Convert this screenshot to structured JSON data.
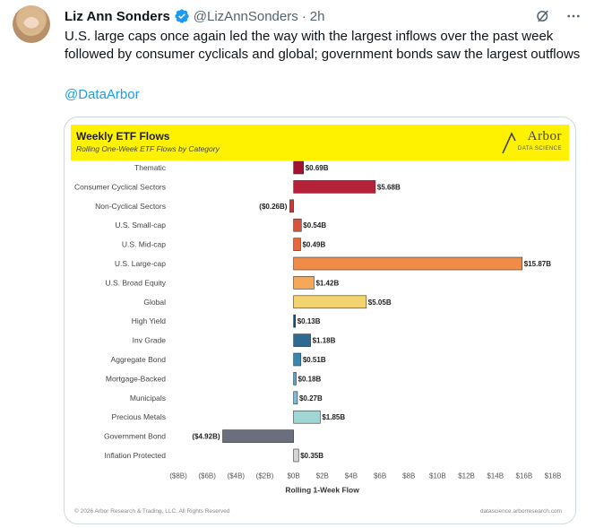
{
  "tweet": {
    "author_name": "Liz Ann Sonders",
    "handle": "@LizAnnSonders",
    "separator": "·",
    "time": "2h",
    "text": "U.S. large caps once again led the way with the largest inflows over the past week followed by consumer cyclicals and global; government bonds saw the largest outflows",
    "mention": "@DataArbor"
  },
  "icons": {
    "verified": "verified-badge-icon",
    "grok": "grok-icon",
    "more": "more-icon"
  },
  "colors": {
    "banner": "#fff200",
    "link": "#1d9bf0",
    "verified": "#1d9bf0"
  },
  "chart_header": {
    "title": "Weekly ETF Flows",
    "subtitle": "Rolling One-Week ETF Flows by Category",
    "logo_text": "Arbor",
    "logo_sub": "DATA SCIENCE"
  },
  "chart_footer": {
    "left": "© 2026 Arbor Research & Trading, LLC. All Rights Reserved",
    "right": "datascience.arborresearch.com"
  },
  "chart_data": {
    "type": "bar",
    "orientation": "horizontal",
    "title": "Weekly ETF Flows",
    "subtitle": "Rolling One-Week ETF Flows by Category",
    "xlabel": "Rolling 1-Week Flow",
    "xlim": [
      -8,
      18
    ],
    "xticks": [
      -8,
      -6,
      -4,
      -2,
      0,
      2,
      4,
      6,
      8,
      10,
      12,
      14,
      16,
      18
    ],
    "xtick_labels": [
      "($8B)",
      "($6B)",
      "($4B)",
      "($2B)",
      "$0B",
      "$2B",
      "$4B",
      "$6B",
      "$8B",
      "$10B",
      "$12B",
      "$14B",
      "$16B",
      "$18B"
    ],
    "categories": [
      "Thematic",
      "Consumer Cyclical Sectors",
      "Non-Cyclical Sectors",
      "U.S. Small-cap",
      "U.S. Mid-cap",
      "U.S. Large-cap",
      "U.S. Broad Equity",
      "Global",
      "High Yield",
      "Inv Grade",
      "Aggregate Bond",
      "Mortgage-Backed",
      "Municipals",
      "Precious Metals",
      "Government Bond",
      "Inflation Protected"
    ],
    "values": [
      0.69,
      5.68,
      -0.26,
      0.54,
      0.49,
      15.87,
      1.42,
      5.05,
      0.13,
      1.18,
      0.51,
      0.18,
      0.27,
      1.85,
      -4.92,
      0.35
    ],
    "value_labels": [
      "$0.69B",
      "$5.68B",
      "($0.26B)",
      "$0.54B",
      "$0.49B",
      "$15.87B",
      "$1.42B",
      "$5.05B",
      "$0.13B",
      "$1.18B",
      "$0.51B",
      "$0.18B",
      "$0.27B",
      "$1.85B",
      "($4.92B)",
      "$0.35B"
    ],
    "bar_colors": [
      "#a3122e",
      "#b5223a",
      "#c63a3a",
      "#d9523c",
      "#e46a3e",
      "#f08b48",
      "#f5a857",
      "#f3d36f",
      "#1f4e79",
      "#2e6b94",
      "#3a86ad",
      "#5aa2c3",
      "#7dbdd3",
      "#9fd6d3",
      "#6b6e7d",
      "#d5d5d8"
    ],
    "grid": false
  }
}
